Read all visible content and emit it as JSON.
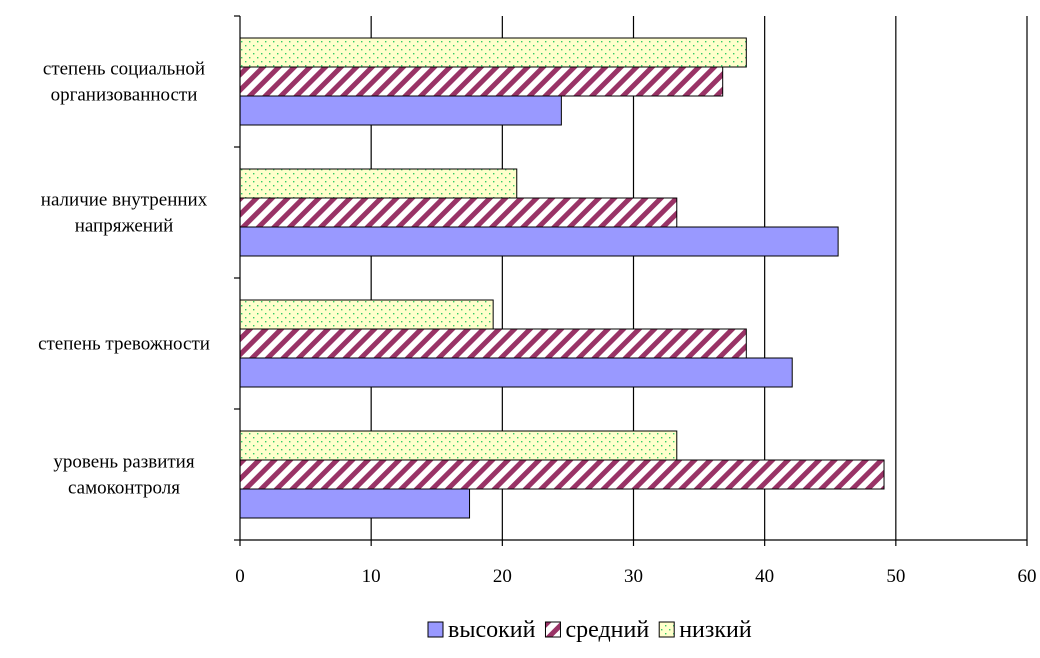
{
  "chart_data": {
    "type": "bar",
    "orientation": "horizontal",
    "categories": [
      [
        "степень социальной",
        "организованности"
      ],
      [
        "наличие внутренних",
        "напряжений"
      ],
      [
        "степень тревожности"
      ],
      [
        "уровень развития",
        "самоконтроля"
      ]
    ],
    "series": [
      {
        "name": "высокий",
        "values": [
          24.5,
          45.6,
          42.1,
          17.5
        ],
        "color": "#9999ff",
        "pattern": "solid"
      },
      {
        "name": "средний",
        "values": [
          36.8,
          33.3,
          38.6,
          49.1
        ],
        "color": "#993366",
        "pattern": "diagonal-stripes"
      },
      {
        "name": "низкий",
        "values": [
          38.6,
          21.1,
          19.3,
          33.3
        ],
        "color": "#ffffcc",
        "pattern": "dots"
      }
    ],
    "xlim": [
      0,
      60
    ],
    "xticks": [
      0,
      10,
      20,
      30,
      40,
      50,
      60
    ],
    "grid": "vertical",
    "legend": "bottom",
    "title": "",
    "xlabel": "",
    "ylabel": ""
  }
}
